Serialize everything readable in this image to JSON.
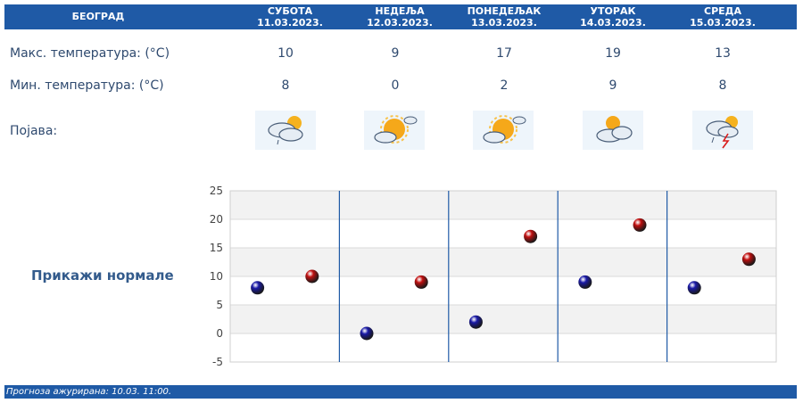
{
  "header": {
    "city": "БЕОГРАД",
    "days": [
      {
        "name": "СУБОТА",
        "date": "11.03.2023."
      },
      {
        "name": "НЕДЕЉА",
        "date": "12.03.2023."
      },
      {
        "name": "ПОНЕДЕЉАК",
        "date": "13.03.2023."
      },
      {
        "name": "УТОРАК",
        "date": "14.03.2023."
      },
      {
        "name": "СРЕДА",
        "date": "15.03.2023."
      }
    ]
  },
  "rows": {
    "max_label": "Макс. температура: (°C)",
    "min_label": "Мин. температура: (°C)",
    "phenomenon_label": "Појава:"
  },
  "forecast": {
    "max": [
      "10",
      "9",
      "17",
      "19",
      "13"
    ],
    "min": [
      "8",
      "0",
      "2",
      "9",
      "8"
    ],
    "icons": [
      "partly-cloudy-rain-icon",
      "partly-sunny-icon",
      "partly-sunny-icon",
      "sun-behind-clouds-icon",
      "thunderstorm-rain-icon"
    ]
  },
  "normals_label": "Прикажи нормале",
  "chart_data": {
    "type": "scatter",
    "title": "",
    "xlabel": "",
    "ylabel": "",
    "ylim": [
      -5,
      25
    ],
    "yticks": [
      "25",
      "20",
      "15",
      "10",
      "5",
      "0",
      "-5"
    ],
    "grid": true,
    "series": [
      {
        "name": "",
        "color": "#1a1aa8",
        "values": [
          8,
          0,
          2,
          9,
          8
        ]
      },
      {
        "name": "",
        "color": "#c21010",
        "values": [
          10,
          9,
          17,
          19,
          13
        ]
      }
    ]
  },
  "footer": {
    "text": "Прогноза ажурирана:  10.03.  11:00."
  }
}
